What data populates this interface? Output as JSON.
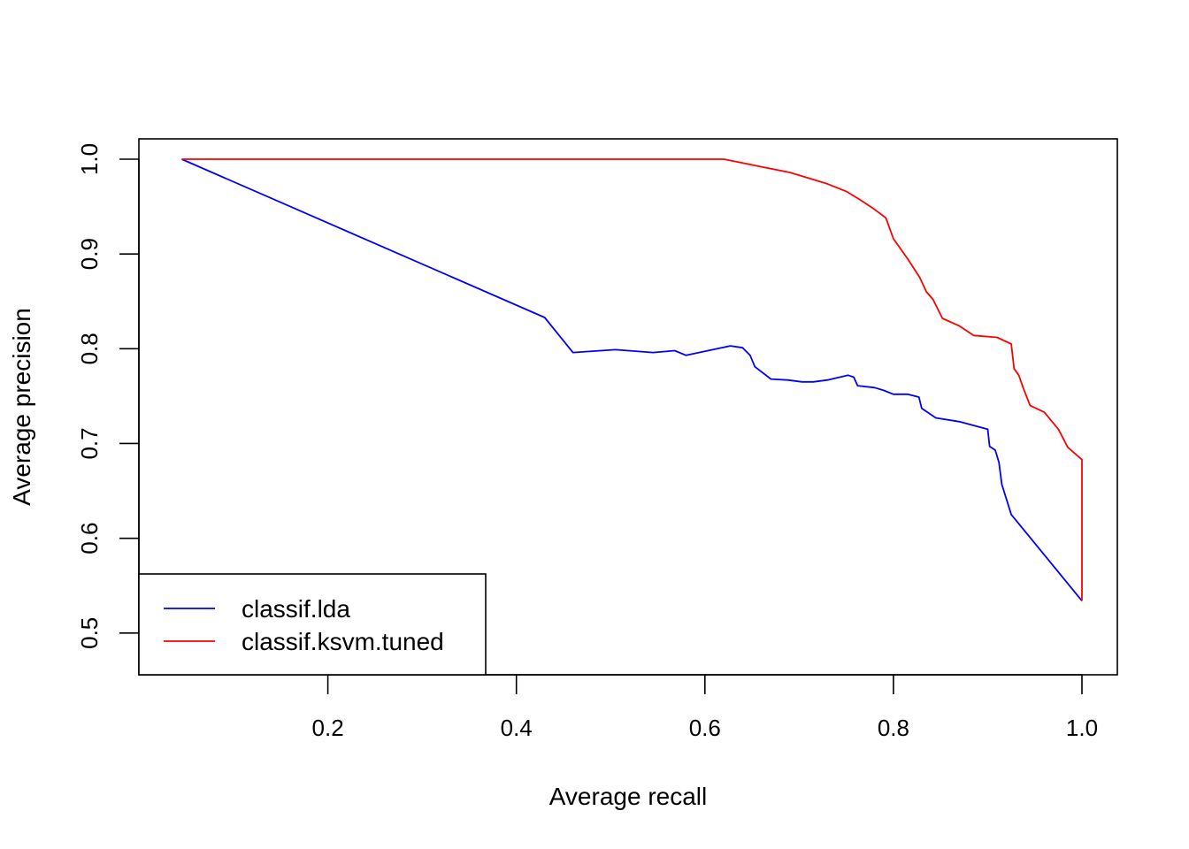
{
  "chart_data": {
    "type": "line",
    "title": "",
    "xlabel": "Average recall",
    "ylabel": "Average precision",
    "xlim": [
      0.0,
      1.0
    ],
    "ylim": [
      0.5,
      1.0
    ],
    "x_ticks": [
      "0.2",
      "0.4",
      "0.6",
      "0.8",
      "1.0"
    ],
    "y_ticks": [
      "0.5",
      "0.6",
      "0.7",
      "0.8",
      "0.9",
      "1.0"
    ],
    "legend_position": "bottom-left",
    "grid": false,
    "series": [
      {
        "name": "classif.lda",
        "color": "#0000ff",
        "x": [
          0.045,
          0.43,
          0.46,
          0.505,
          0.545,
          0.568,
          0.58,
          0.627,
          0.64,
          0.648,
          0.653,
          0.67,
          0.688,
          0.703,
          0.715,
          0.73,
          0.752,
          0.758,
          0.762,
          0.78,
          0.79,
          0.8,
          0.815,
          0.827,
          0.83,
          0.845,
          0.87,
          0.9,
          0.902,
          0.908,
          0.912,
          0.915,
          0.925,
          1.0
        ],
        "y": [
          1.0,
          0.833,
          0.796,
          0.799,
          0.796,
          0.798,
          0.793,
          0.803,
          0.801,
          0.793,
          0.781,
          0.768,
          0.767,
          0.765,
          0.765,
          0.767,
          0.772,
          0.77,
          0.761,
          0.759,
          0.756,
          0.752,
          0.752,
          0.749,
          0.737,
          0.727,
          0.723,
          0.715,
          0.697,
          0.693,
          0.68,
          0.657,
          0.625,
          0.534
        ]
      },
      {
        "name": "classif.ksvm.tuned",
        "color": "#ff0000",
        "x": [
          0.045,
          0.62,
          0.64,
          0.66,
          0.69,
          0.71,
          0.73,
          0.75,
          0.765,
          0.78,
          0.792,
          0.8,
          0.815,
          0.828,
          0.835,
          0.842,
          0.852,
          0.87,
          0.885,
          0.91,
          0.925,
          0.928,
          0.933,
          0.938,
          0.945,
          0.96,
          0.975,
          0.985,
          1.0,
          1.0
        ],
        "y": [
          1.0,
          1.0,
          0.996,
          0.992,
          0.986,
          0.98,
          0.974,
          0.966,
          0.957,
          0.947,
          0.938,
          0.916,
          0.895,
          0.875,
          0.86,
          0.852,
          0.832,
          0.824,
          0.814,
          0.812,
          0.805,
          0.779,
          0.772,
          0.758,
          0.74,
          0.733,
          0.715,
          0.696,
          0.683,
          0.534
        ]
      }
    ]
  }
}
